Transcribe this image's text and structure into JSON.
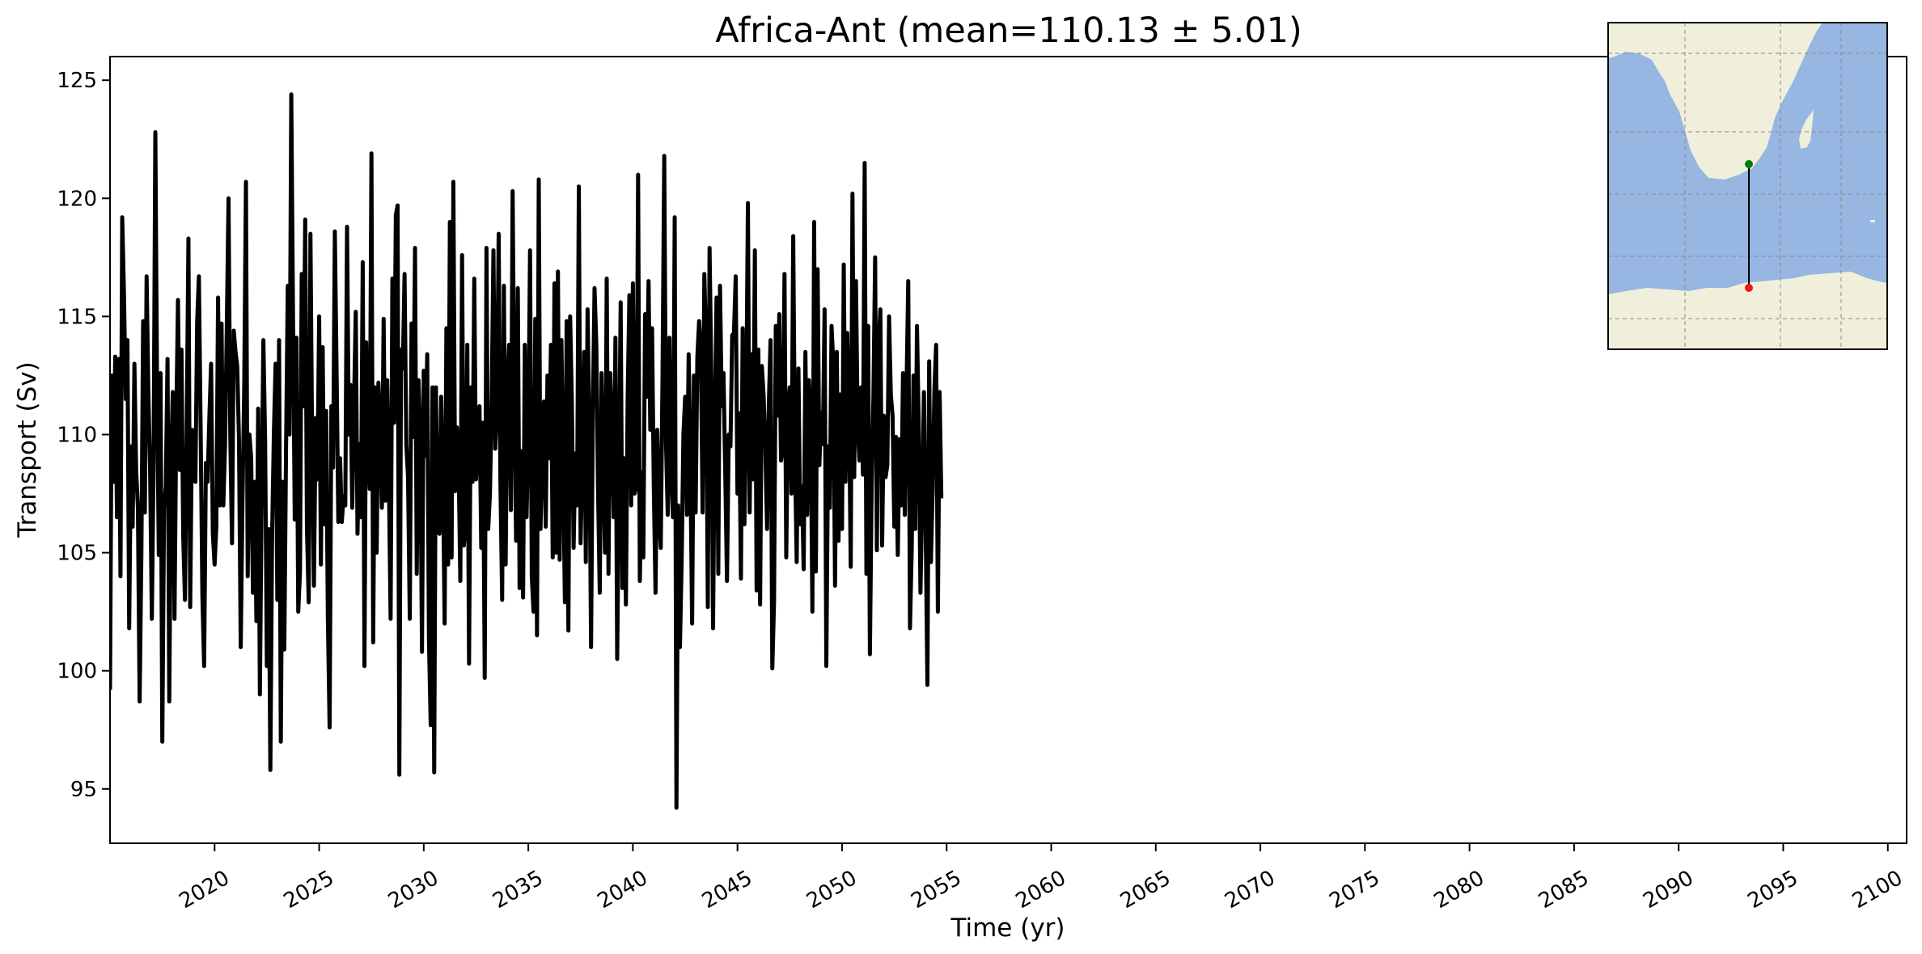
{
  "chart_data": {
    "type": "line",
    "title": "Africa-Ant (mean=110.13 ± 5.01)",
    "xlabel": "Time (yr)",
    "ylabel": "Transport (Sv)",
    "xlim": [
      2015.0,
      2100.9
    ],
    "ylim": [
      92.7,
      126.0
    ],
    "x_ticks": [
      2020,
      2025,
      2030,
      2035,
      2040,
      2045,
      2050,
      2055,
      2060,
      2065,
      2070,
      2075,
      2080,
      2085,
      2090,
      2095,
      2100
    ],
    "x_tick_labels": [
      "2020",
      "2025",
      "2030",
      "2035",
      "2040",
      "2045",
      "2050",
      "2055",
      "2060",
      "2065",
      "2070",
      "2075",
      "2080",
      "2085",
      "2090",
      "2095",
      "2100"
    ],
    "y_ticks": [
      95,
      100,
      105,
      110,
      115,
      120,
      125
    ],
    "y_tick_labels": [
      "95",
      "100",
      "105",
      "110",
      "115",
      "120",
      "125"
    ],
    "grid": false,
    "series_color": "#000000",
    "series": [
      {
        "x_start": 2015.0,
        "x_step_years": 0.08333,
        "frequency": "monthly",
        "values": [
          99.2,
          112.5,
          108.0,
          113.3,
          106.5,
          113.2,
          104.0,
          119.2,
          116.0,
          111.5,
          114.0,
          101.8,
          109.5,
          106.1,
          113.0,
          108.5,
          106.9,
          98.7,
          105.0,
          114.8,
          106.7,
          116.7,
          111.8,
          108.5,
          102.2,
          108.8,
          122.8,
          112.0,
          104.9,
          112.6,
          97.0,
          106.9,
          107.8,
          113.2,
          98.7,
          108.7,
          111.8,
          102.2,
          110.5,
          115.7,
          108.5,
          113.6,
          105.7,
          103.0,
          110.2,
          118.3,
          102.7,
          110.2,
          109.1,
          108.0,
          114.8,
          116.7,
          110.2,
          103.2,
          100.2,
          108.8,
          108.0,
          110.7,
          113.0,
          105.8,
          104.5,
          106.1,
          115.8,
          107.0,
          114.7,
          107.0,
          109.5,
          114.5,
          120.0,
          110.0,
          105.4,
          114.4,
          113.5,
          112.9,
          109.8,
          101.0,
          107.1,
          112.0,
          120.7,
          104.0,
          110.0,
          109.0,
          103.3,
          108.0,
          102.1,
          111.1,
          99.0,
          107.4,
          114.0,
          109.7,
          100.2,
          106.0,
          95.8,
          105.7,
          110.0,
          113.0,
          103.0,
          114.0,
          97.0,
          108.0,
          100.9,
          109.4,
          116.3,
          110.0,
          124.4,
          115.0,
          106.4,
          114.1,
          102.5,
          104.2,
          116.8,
          111.2,
          119.1,
          106.0,
          102.9,
          118.5,
          109.3,
          103.6,
          110.7,
          108.1,
          115.0,
          104.5,
          113.7,
          106.2,
          111.0,
          102.2,
          97.6,
          111.2,
          108.6,
          118.6,
          112.7,
          106.3,
          109.0,
          106.3,
          107.4,
          107.0,
          118.8,
          110.0,
          112.1,
          106.9,
          111.3,
          115.2,
          105.8,
          109.6,
          106.5,
          117.3,
          100.2,
          113.9,
          109.9,
          107.7,
          121.9,
          101.2,
          112.0,
          105.0,
          112.2,
          110.2,
          106.9,
          114.9,
          107.2,
          112.3,
          108.1,
          102.2,
          116.6,
          110.5,
          119.3,
          119.7,
          95.6,
          113.6,
          112.8,
          116.8,
          109.6,
          108.2,
          102.2,
          114.7,
          109.9,
          117.9,
          104.1,
          112.3,
          110.0,
          100.8,
          112.7,
          109.1,
          113.4,
          101.3,
          97.7,
          112.0,
          95.7,
          112.0,
          106.0,
          105.8,
          111.6,
          108.4,
          102.0,
          114.5,
          104.5,
          119.0,
          104.8,
          120.7,
          107.6,
          110.3,
          108.9,
          103.8,
          117.6,
          105.3,
          106.2,
          113.8,
          100.3,
          112.0,
          108.0,
          116.6,
          108.1,
          109.8,
          111.2,
          105.2,
          110.5,
          99.7,
          117.9,
          106.0,
          107.5,
          111.5,
          117.8,
          109.4,
          111.0,
          118.5,
          108.0,
          103.0,
          116.3,
          104.5,
          112.3,
          113.8,
          106.8,
          120.3,
          111.4,
          105.5,
          116.2,
          103.5,
          109.3,
          103.1,
          113.8,
          106.5,
          110.0,
          117.8,
          104.0,
          102.5,
          114.9,
          101.5,
          120.8,
          106.0,
          109.0,
          111.4,
          106.1,
          112.5,
          109.0,
          113.8,
          104.8,
          116.4,
          105.0,
          116.9,
          104.7,
          114.0,
          108.7,
          102.9,
          114.8,
          101.7,
          115.0,
          111.4,
          105.2,
          109.2,
          107.0,
          120.5,
          105.4,
          108.8,
          113.5,
          104.6,
          115.3,
          110.5,
          101.0,
          110.8,
          116.2,
          113.9,
          107.7,
          103.3,
          112.6,
          108.6,
          105.0,
          116.6,
          104.1,
          112.6,
          110.2,
          106.5,
          114.1,
          100.5,
          108.0,
          115.6,
          103.5,
          109.0,
          102.8,
          111.5,
          115.9,
          107.0,
          116.4,
          107.5,
          107.8,
          121.0,
          103.8,
          108.4,
          104.8,
          115.1,
          111.6,
          116.5,
          110.2,
          114.5,
          107.8,
          103.3,
          110.2,
          106.7,
          105.2,
          112.4,
          121.8,
          109.7,
          106.6,
          114.1,
          108.3,
          106.5,
          119.2,
          94.2,
          107.0,
          101.0,
          104.7,
          110.0,
          111.6,
          106.6,
          113.4,
          108.7,
          102.0,
          112.5,
          106.7,
          113.3,
          114.8,
          113.7,
          106.7,
          116.8,
          113.8,
          102.7,
          117.9,
          112.5,
          101.8,
          110.3,
          115.8,
          104.1,
          116.3,
          111.2,
          112.6,
          108.4,
          103.8,
          110.0,
          109.5,
          114.2,
          114.3,
          116.7,
          107.5,
          110.9,
          103.9,
          114.5,
          106.2,
          110.7,
          119.8,
          106.7,
          113.4,
          108.1,
          117.8,
          103.4,
          113.6,
          102.8,
          112.9,
          111.7,
          109.4,
          106.0,
          111.3,
          114.0,
          100.1,
          102.9,
          114.6,
          110.8,
          115.1,
          108.9,
          109.4,
          116.8,
          104.8,
          111.2,
          112.0,
          107.5,
          118.4,
          109.1,
          104.6,
          112.8,
          106.2,
          107.8,
          104.3,
          113.5,
          106.6,
          112.3,
          110.7,
          102.5,
          119.0,
          104.2,
          117.0,
          108.7,
          110.9,
          109.6,
          115.3,
          100.2,
          109.5,
          106.9,
          114.6,
          113.0,
          103.6,
          113.5,
          105.5,
          111.7,
          106.0,
          117.2,
          108.0,
          114.3,
          111.4,
          104.4,
          120.2,
          108.2,
          116.5,
          110.3,
          108.9,
          112.0,
          108.3,
          121.5,
          104.1,
          114.6,
          100.7,
          107.8,
          111.5,
          117.5,
          105.1,
          113.8,
          115.3,
          105.3,
          110.8,
          108.2,
          108.7,
          115.0,
          111.7,
          110.8,
          106.1,
          109.9,
          104.9,
          109.8,
          107.0,
          112.6,
          106.6,
          111.9,
          116.5,
          101.8,
          105.2,
          112.5,
          106.0,
          114.6,
          110.5,
          103.3,
          107.3,
          111.8,
          106.0,
          99.4,
          113.1,
          104.6,
          107.6,
          111.9,
          113.8,
          102.5,
          111.8,
          107.3
        ]
      }
    ]
  },
  "inset_map": {
    "land_color": "#efefdb",
    "ocean_color": "#97b6e1",
    "section_line_color": "#000000",
    "start_point_color": "#0a7a0a",
    "end_point_color": "#e81919"
  }
}
